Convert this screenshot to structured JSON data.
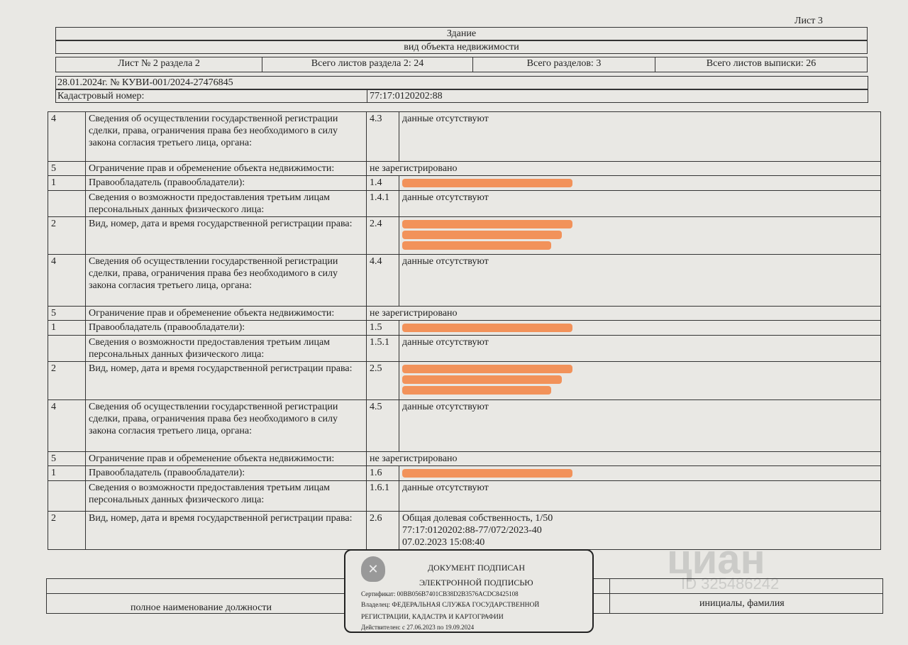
{
  "header": {
    "sheet": "Лист 3",
    "object": "Здание",
    "object_caption": "вид объекта недвижимости",
    "sheet_no": "Лист № 2 раздела 2",
    "sheets_in_section": "Всего листов раздела 2: 24",
    "sections": "Всего разделов: 3",
    "sheets_total": "Всего листов выписки: 26",
    "doc_ref": "28.01.2024г. № КУВИ-001/2024-27476845",
    "cadastral_label": "Кадастровый номер:",
    "cadastral_value": "77:17:0120202:88"
  },
  "rows": [
    {
      "n": "4",
      "label": "Сведения об осуществлении государственной регистрации сделки, права, ограничения права без необходимого в силу закона согласия третьего лица, органа:",
      "code": "4.3",
      "value": "данные отсутствуют",
      "h": 70
    },
    {
      "n": "5",
      "label": "Ограничение прав и обременение объекта недвижимости:",
      "value": "не зарегистрировано",
      "span": true,
      "h": 17
    },
    {
      "n": "1",
      "label": "Правообладатель (правообладатели):",
      "code": "1.4",
      "redacted": 1,
      "h": 18
    },
    {
      "n": "",
      "label": "Сведения о возможности предоставления третьим лицам персональных данных физического лица:",
      "code": "1.4.1",
      "value": "данные отсутствуют",
      "h": 35
    },
    {
      "n": "2",
      "label": "Вид, номер, дата и время государственной регистрации права:",
      "code": "2.4",
      "redacted": 3,
      "h": 53
    },
    {
      "n": "4",
      "label": "Сведения об осуществлении государственной регистрации сделки, права, ограничения права без необходимого в силу закона согласия третьего лица, органа:",
      "code": "4.4",
      "value": "данные отсутствуют",
      "h": 73
    },
    {
      "n": "5",
      "label": "Ограничение прав и обременение объекта недвижимости:",
      "value": "не зарегистрировано",
      "span": true,
      "h": 16
    },
    {
      "n": "1",
      "label": "Правообладатель (правообладатели):",
      "code": "1.5",
      "redacted": 1,
      "h": 18
    },
    {
      "n": "",
      "label": "Сведения о возможности предоставления третьим лицам персональных данных физического лица:",
      "code": "1.5.1",
      "value": "данные отсутствуют",
      "h": 36
    },
    {
      "n": "2",
      "label": "Вид, номер, дата и время государственной регистрации права:",
      "code": "2.5",
      "redacted": 3,
      "h": 54
    },
    {
      "n": "4",
      "label": "Сведения об осуществлении государственной регистрации сделки, права, ограничения права без необходимого в силу закона согласия третьего лица, органа:",
      "code": "4.5",
      "value": "данные отсутствуют",
      "h": 73
    },
    {
      "n": "5",
      "label": "Ограничение прав и обременение объекта недвижимости:",
      "value": "не зарегистрировано",
      "span": true,
      "h": 16
    },
    {
      "n": "1",
      "label": "Правообладатель (правообладатели):",
      "code": "1.6",
      "redacted": 1,
      "h": 20
    },
    {
      "n": "",
      "label": "Сведения о возможности предоставления третьим лицам персональных данных физического лица:",
      "code": "1.6.1",
      "value": "данные отсутствуют",
      "h": 43
    },
    {
      "n": "2",
      "label": "Вид, номер, дата и время государственной регистрации права:",
      "code": "2.6",
      "value": "Общая долевая собственность, 1/50\n77:17:0120202:88-77/072/2023-40\n07.02.2023 15:08:40",
      "h": 52
    }
  ],
  "stamp": {
    "title1": "ДОКУМЕНТ ПОДПИСАН",
    "title2": "ЭЛЕКТРОННОЙ ПОДПИСЬЮ",
    "cert": "Сертификат: 00BB056B7401CB38D2B3576ACDC8425108",
    "owner1": "Владелец: ФЕДЕРАЛЬНАЯ СЛУЖБА ГОСУДАРСТВЕННОЙ",
    "owner2": "РЕГИСТРАЦИИ, КАДАСТРА И КАРТОГРАФИИ",
    "valid": "Действителен: с 27.06.2023 по 19.09.2024"
  },
  "footer": {
    "position": "полное наименование должности",
    "name": "инициалы, фамилия"
  },
  "watermark": {
    "brand": "циан",
    "id": "ID 325486242"
  },
  "colors": {
    "redaction": "#f2925a",
    "paper": "#e9e8e4"
  }
}
